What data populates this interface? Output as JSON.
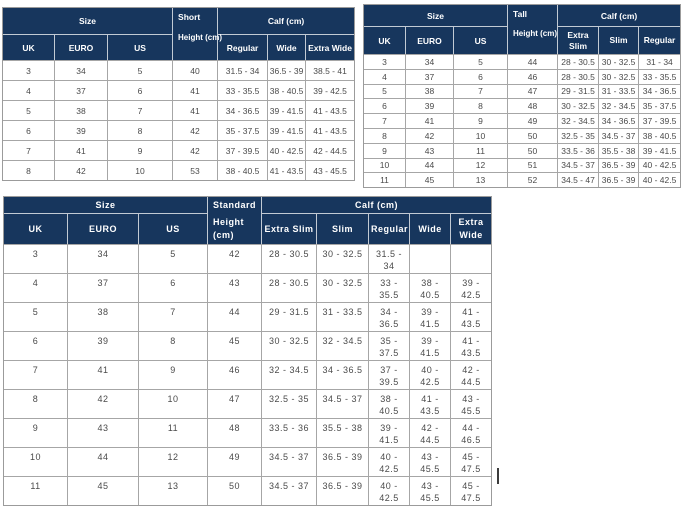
{
  "colors": {
    "header_bg": "#17365d",
    "header_text": "#ffffff",
    "body_text": "#4a4a4a",
    "border": "#a6a6a6",
    "header_border": "#c2cad4",
    "cursor": "#3c3c3c"
  },
  "chart_data": [
    {
      "type": "table",
      "id": "short",
      "size_label": "Size",
      "variant_label": "Short",
      "height_label": "Height (cm)",
      "calf_label": "Calf (cm)",
      "size_columns": [
        "UK",
        "EURO",
        "US"
      ],
      "calf_columns": [
        "Regular",
        "Wide",
        "Extra Wide"
      ],
      "rows": [
        [
          "3",
          "34",
          "5",
          "40",
          "31.5 - 34",
          "36.5 - 39",
          "38.5 - 41"
        ],
        [
          "4",
          "37",
          "6",
          "41",
          "33 - 35.5",
          "38 - 40.5",
          "39 - 42.5"
        ],
        [
          "5",
          "38",
          "7",
          "41",
          "34 - 36.5",
          "39 - 41.5",
          "41 - 43.5"
        ],
        [
          "6",
          "39",
          "8",
          "42",
          "35 - 37.5",
          "39 - 41.5",
          "41 - 43.5"
        ],
        [
          "7",
          "41",
          "9",
          "42",
          "37 - 39.5",
          "40 - 42.5",
          "42 - 44.5"
        ],
        [
          "8",
          "42",
          "10",
          "53",
          "38 - 40.5",
          "41 - 43.5",
          "43 - 45.5"
        ]
      ]
    },
    {
      "type": "table",
      "id": "tall",
      "size_label": "Size",
      "variant_label": "Tall",
      "height_label": "Height (cm)",
      "calf_label": "Calf (cm)",
      "size_columns": [
        "UK",
        "EURO",
        "US"
      ],
      "calf_columns": [
        "Extra Slim",
        "Slim",
        "Regular"
      ],
      "rows": [
        [
          "3",
          "34",
          "5",
          "44",
          "28 - 30.5",
          "30 - 32.5",
          "31 - 34"
        ],
        [
          "4",
          "37",
          "6",
          "46",
          "28 - 30.5",
          "30 - 32.5",
          "33 - 35.5"
        ],
        [
          "5",
          "38",
          "7",
          "47",
          "29 - 31.5",
          "31 - 33.5",
          "34 - 36.5"
        ],
        [
          "6",
          "39",
          "8",
          "48",
          "30 - 32.5",
          "32 - 34.5",
          "35 - 37.5"
        ],
        [
          "7",
          "41",
          "9",
          "49",
          "32 - 34.5",
          "34 - 36.5",
          "37 - 39.5"
        ],
        [
          "8",
          "42",
          "10",
          "50",
          "32.5 - 35",
          "34.5 - 37",
          "38 - 40.5"
        ],
        [
          "9",
          "43",
          "11",
          "50",
          "33.5 - 36",
          "35.5 - 38",
          "39 - 41.5"
        ],
        [
          "10",
          "44",
          "12",
          "51",
          "34.5 - 37",
          "36.5 - 39",
          "40 - 42.5"
        ],
        [
          "11",
          "45",
          "13",
          "52",
          "34.5 - 47",
          "36.5 - 39",
          "40 - 42.5"
        ]
      ]
    },
    {
      "type": "table",
      "id": "standard",
      "size_label": "Size",
      "variant_label": "Standard",
      "height_label": "Height (cm)",
      "calf_label": "Calf (cm)",
      "size_columns": [
        "UK",
        "EURO",
        "US"
      ],
      "calf_columns": [
        "Extra Slim",
        "Slim",
        "Regular",
        "Wide",
        "Extra Wide"
      ],
      "rows": [
        [
          "3",
          "34",
          "5",
          "42",
          "28 - 30.5",
          "30 - 32.5",
          "31.5 - 34",
          "",
          ""
        ],
        [
          "4",
          "37",
          "6",
          "43",
          "28 - 30.5",
          "30 - 32.5",
          "33 - 35.5",
          "38 - 40.5",
          "39 - 42.5"
        ],
        [
          "5",
          "38",
          "7",
          "44",
          "29 - 31.5",
          "31 - 33.5",
          "34 - 36.5",
          "39 - 41.5",
          "41 - 43.5"
        ],
        [
          "6",
          "39",
          "8",
          "45",
          "30 - 32.5",
          "32 - 34.5",
          "35 - 37.5",
          "39 - 41.5",
          "41 - 43.5"
        ],
        [
          "7",
          "41",
          "9",
          "46",
          "32 - 34.5",
          "34 - 36.5",
          "37 - 39.5",
          "40 - 42.5",
          "42 - 44.5"
        ],
        [
          "8",
          "42",
          "10",
          "47",
          "32.5 - 35",
          "34.5 - 37",
          "38 - 40.5",
          "41 - 43.5",
          "43 - 45.5"
        ],
        [
          "9",
          "43",
          "11",
          "48",
          "33.5 - 36",
          "35.5 - 38",
          "39 - 41.5",
          "42 - 44.5",
          "44 - 46.5"
        ],
        [
          "10",
          "44",
          "12",
          "49",
          "34.5 - 37",
          "36.5 - 39",
          "40 - 42.5",
          "43 - 45.5",
          "45 - 47.5"
        ],
        [
          "11",
          "45",
          "13",
          "50",
          "34.5 - 37",
          "36.5 - 39",
          "40 - 42.5",
          "43 - 45.5",
          "45 - 47.5"
        ]
      ]
    }
  ]
}
